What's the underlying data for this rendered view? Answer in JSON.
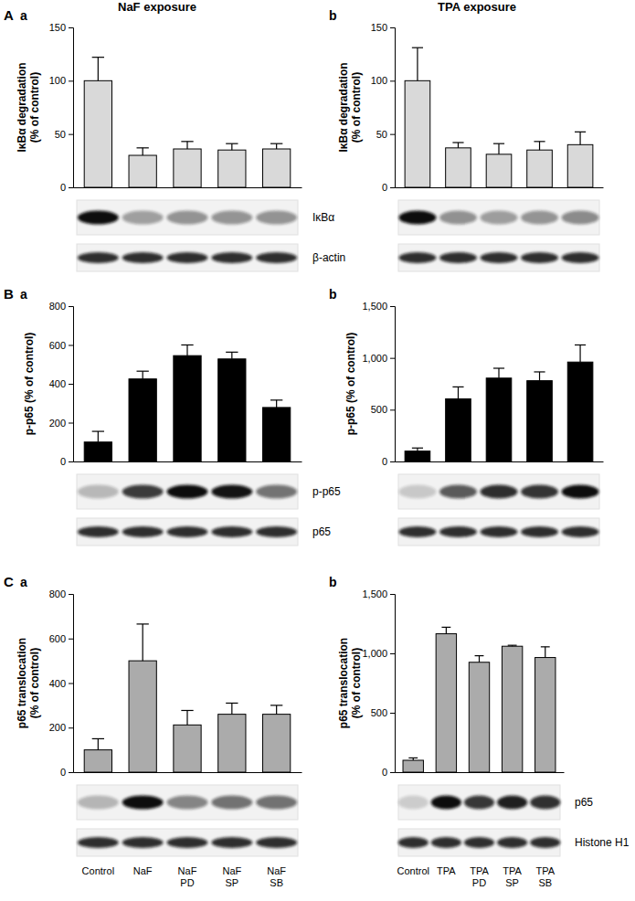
{
  "chart_data": [
    {
      "type": "bar",
      "panel": "A",
      "subpanel": "a",
      "title": "NaF exposure",
      "y_label": [
        "IκBα degradation",
        "(% of control)"
      ],
      "categories": [
        null,
        null,
        null,
        null,
        null
      ],
      "values": [
        100,
        30,
        36,
        35,
        36
      ],
      "errors": [
        22,
        7,
        7,
        6,
        5
      ],
      "color": "#d9d9d9",
      "ylim": [
        0,
        150
      ],
      "yticks": [
        0,
        50,
        100,
        150
      ],
      "blot_labels": [
        "IκBα",
        "β-actin"
      ]
    },
    {
      "type": "bar",
      "subpanel": "b",
      "title": "TPA exposure",
      "y_label": [
        "IκBα degradation",
        "(% of control)"
      ],
      "categories": [
        null,
        null,
        null,
        null,
        null
      ],
      "values": [
        100,
        37,
        31,
        35,
        40
      ],
      "errors": [
        31,
        5,
        10,
        8,
        12
      ],
      "color": "#d9d9d9",
      "ylim": [
        0,
        150
      ],
      "yticks": [
        0,
        50,
        100,
        150
      ]
    },
    {
      "type": "bar",
      "panel": "B",
      "subpanel": "a",
      "y_label": [
        "p-p65 (% of control)"
      ],
      "categories": [
        null,
        null,
        null,
        null,
        null
      ],
      "values": [
        100,
        425,
        545,
        528,
        278
      ],
      "errors": [
        55,
        40,
        55,
        35,
        38
      ],
      "color": "#000000",
      "ylim": [
        0,
        800
      ],
      "yticks": [
        0,
        200,
        400,
        600,
        800
      ],
      "blot_labels": [
        "p-p65",
        "p65"
      ]
    },
    {
      "type": "bar",
      "subpanel": "b",
      "y_label": [
        "p-p65 (% of control)"
      ],
      "categories": [
        null,
        null,
        null,
        null,
        null
      ],
      "values": [
        100,
        605,
        805,
        780,
        960
      ],
      "errors": [
        30,
        115,
        95,
        85,
        165
      ],
      "color": "#000000",
      "ylim": [
        0,
        1500
      ],
      "yticks": [
        0,
        500,
        {
          "value": 1000,
          "label": "1,000"
        },
        {
          "value": 1500,
          "label": "1,500"
        }
      ]
    },
    {
      "type": "bar",
      "panel": "C",
      "subpanel": "a",
      "y_label": [
        "p65 translocation",
        "(% of control)"
      ],
      "categories": [
        "Control",
        "NaF",
        "NaF PD",
        "NaF SP",
        "NaF SB"
      ],
      "values": [
        100,
        500,
        212,
        260,
        260
      ],
      "errors": [
        50,
        165,
        65,
        50,
        40
      ],
      "color": "#ababab",
      "ylim": [
        0,
        800
      ],
      "yticks": [
        0,
        200,
        400,
        600,
        800
      ]
    },
    {
      "type": "bar",
      "subpanel": "b",
      "y_label": [
        "p65 translocation",
        "(% of control)"
      ],
      "categories": [
        "Control",
        "TPA",
        "TPA PD",
        "TPA SP",
        "TPA SB"
      ],
      "values": [
        100,
        1165,
        925,
        1060,
        965
      ],
      "errors": [
        20,
        55,
        55,
        8,
        90
      ],
      "color": "#ababab",
      "ylim": [
        0,
        1500
      ],
      "yticks": [
        0,
        500,
        {
          "value": 1000,
          "label": "1,000"
        },
        {
          "value": 1500,
          "label": "1,500"
        }
      ],
      "blot_labels": [
        "p65",
        "Histone H1"
      ]
    }
  ]
}
